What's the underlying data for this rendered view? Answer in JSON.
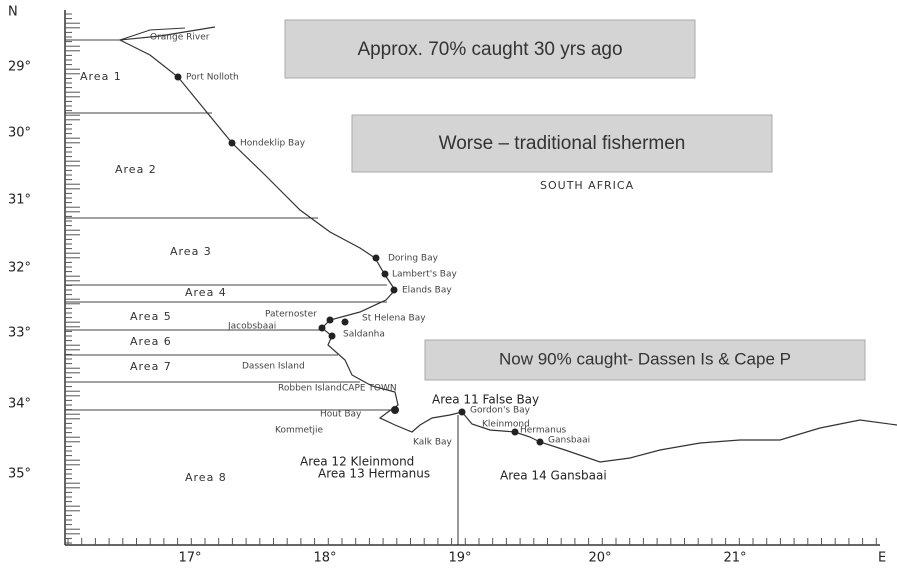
{
  "axes": {
    "north": "N",
    "east": "E",
    "lat": [
      "29°",
      "30°",
      "31°",
      "32°",
      "33°",
      "34°",
      "35°"
    ],
    "lon": [
      "17°",
      "18°",
      "19°",
      "20°",
      "21°"
    ]
  },
  "region": "SOUTH AFRICA",
  "places": [
    "Orange River",
    "Port Nolloth",
    "Hondeklip Bay",
    "Doring Bay",
    "Lambert's Bay",
    "Elands Bay",
    "Paternoster",
    "St Helena Bay",
    "Jacobsbaai",
    "Saldanha",
    "Dassen Island",
    "Robben Island",
    "CAPE TOWN",
    "Hout Bay",
    "Kommetjie",
    "Kalk Bay",
    "Gordon's Bay",
    "Kleinmond",
    "Hermanus",
    "Gansbaai"
  ],
  "areas": [
    "Area 1",
    "Area 2",
    "Area 3",
    "Area 4",
    "Area 5",
    "Area 6",
    "Area 7",
    "Area 8",
    "Area 11 False Bay",
    "Area 12 Kleinmond",
    "Area 13 Hermanus",
    "Area 14 Gansbaai"
  ],
  "callouts": [
    "Approx. 70% caught 30 yrs ago",
    "Worse – traditional fishermen",
    "Now 90% caught- Dassen Is & Cape P"
  ]
}
